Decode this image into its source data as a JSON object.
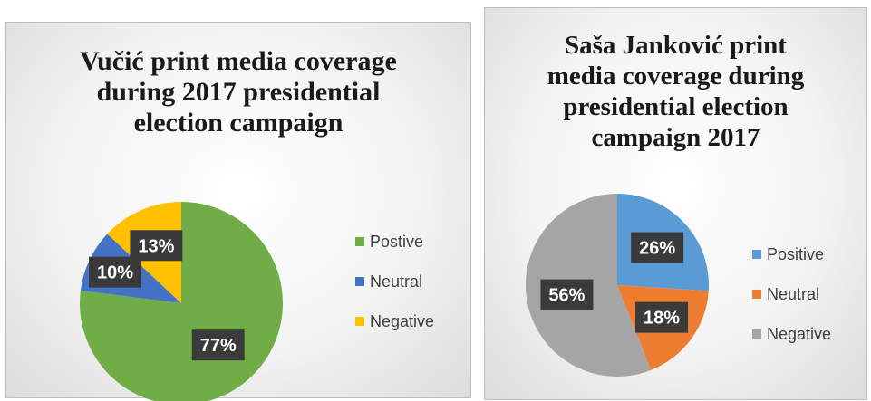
{
  "chart_data": [
    {
      "type": "pie",
      "title": "Vučić print media coverage during 2017 presidential election campaign",
      "title_lines": [
        "Vučić print media coverage",
        "during 2017 presidential",
        "election campaign"
      ],
      "categories": [
        "Postive",
        "Neutral",
        "Negative"
      ],
      "values": [
        77,
        10,
        13
      ],
      "labels": [
        "77%",
        "10%",
        "13%"
      ],
      "colors": [
        "#70ad47",
        "#4472c4",
        "#ffc000"
      ],
      "legend_position": "right"
    },
    {
      "type": "pie",
      "title": "Saša Janković print media coverage during presidential election campaign 2017",
      "title_lines": [
        "Saša Janković print",
        "media coverage during",
        "presidential election",
        "campaign 2017"
      ],
      "categories": [
        "Positive",
        "Neutral",
        "Negative"
      ],
      "values": [
        26,
        18,
        56
      ],
      "labels": [
        "26%",
        "18%",
        "56%"
      ],
      "colors": [
        "#5b9bd5",
        "#ed7d31",
        "#a5a5a5"
      ],
      "legend_position": "right"
    }
  ]
}
